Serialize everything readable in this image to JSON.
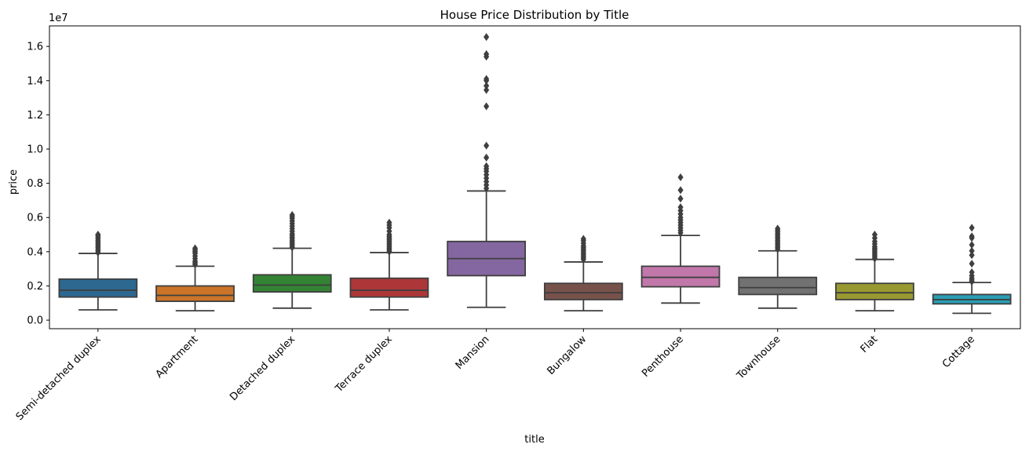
{
  "chart_data": {
    "type": "box",
    "title": "House Price Distribution by Title",
    "xlabel": "title",
    "ylabel": "price",
    "y_scale_label": "1e7",
    "ylim": [
      -0.05,
      1.72
    ],
    "y_unit_multiplier": 10000000,
    "yticks": [
      0.0,
      0.2,
      0.4,
      0.6,
      0.8,
      1.0,
      1.2,
      1.4,
      1.6
    ],
    "ytick_labels": [
      "0.0",
      "0.2",
      "0.4",
      "0.6",
      "0.8",
      "1.0",
      "1.2",
      "1.4",
      "1.6"
    ],
    "categories": [
      "Semi-detached duplex",
      "Apartment",
      "Detached duplex",
      "Terrace duplex",
      "Mansion",
      "Bungalow",
      "Penthouse",
      "Townhouse",
      "Flat",
      "Cottage"
    ],
    "boxes": [
      {
        "category": "Semi-detached duplex",
        "color": "#3274a1",
        "whisker_low": 0.06,
        "q1": 0.135,
        "median": 0.175,
        "q3": 0.24,
        "whisker_high": 0.39,
        "outliers": [
          0.395,
          0.405,
          0.415,
          0.425,
          0.435,
          0.445,
          0.455,
          0.465,
          0.475,
          0.485,
          0.495,
          0.5
        ]
      },
      {
        "category": "Apartment",
        "color": "#e1812c",
        "whisker_low": 0.055,
        "q1": 0.11,
        "median": 0.145,
        "q3": 0.2,
        "whisker_high": 0.315,
        "outliers": [
          0.325,
          0.335,
          0.345,
          0.36,
          0.375,
          0.39,
          0.4,
          0.41,
          0.42
        ]
      },
      {
        "category": "Detached duplex",
        "color": "#3a923a",
        "whisker_low": 0.07,
        "q1": 0.165,
        "median": 0.205,
        "q3": 0.265,
        "whisker_high": 0.42,
        "outliers": [
          0.425,
          0.435,
          0.445,
          0.455,
          0.465,
          0.475,
          0.485,
          0.495,
          0.505,
          0.52,
          0.535,
          0.55,
          0.565,
          0.58,
          0.595,
          0.605,
          0.615
        ]
      },
      {
        "category": "Terrace duplex",
        "color": "#c03d3e",
        "whisker_low": 0.06,
        "q1": 0.135,
        "median": 0.175,
        "q3": 0.245,
        "whisker_high": 0.395,
        "outliers": [
          0.4,
          0.41,
          0.42,
          0.43,
          0.44,
          0.45,
          0.46,
          0.47,
          0.48,
          0.49,
          0.5,
          0.52,
          0.54,
          0.555,
          0.57
        ]
      },
      {
        "category": "Mansion",
        "color": "#9372b2",
        "whisker_low": 0.075,
        "q1": 0.26,
        "median": 0.36,
        "q3": 0.46,
        "whisker_high": 0.755,
        "outliers": [
          0.77,
          0.79,
          0.81,
          0.83,
          0.85,
          0.87,
          0.885,
          0.9,
          0.95,
          1.02,
          1.25,
          1.345,
          1.37,
          1.4,
          1.41,
          1.54,
          1.555,
          1.655
        ]
      },
      {
        "category": "Bungalow",
        "color": "#845b53",
        "whisker_low": 0.055,
        "q1": 0.12,
        "median": 0.16,
        "q3": 0.215,
        "whisker_high": 0.34,
        "outliers": [
          0.355,
          0.365,
          0.375,
          0.385,
          0.395,
          0.405,
          0.415,
          0.425,
          0.435,
          0.45,
          0.465,
          0.475
        ]
      },
      {
        "category": "Penthouse",
        "color": "#d684bd",
        "whisker_low": 0.1,
        "q1": 0.195,
        "median": 0.25,
        "q3": 0.315,
        "whisker_high": 0.495,
        "outliers": [
          0.51,
          0.525,
          0.54,
          0.555,
          0.57,
          0.585,
          0.6,
          0.62,
          0.64,
          0.66,
          0.71,
          0.76,
          0.835
        ]
      },
      {
        "category": "Townhouse",
        "color": "#7f7f7f",
        "whisker_low": 0.07,
        "q1": 0.15,
        "median": 0.19,
        "q3": 0.25,
        "whisker_high": 0.405,
        "outliers": [
          0.415,
          0.425,
          0.435,
          0.445,
          0.455,
          0.465,
          0.475,
          0.485,
          0.495,
          0.505,
          0.515,
          0.525,
          0.535
        ]
      },
      {
        "category": "Flat",
        "color": "#a9aa35",
        "whisker_low": 0.055,
        "q1": 0.12,
        "median": 0.16,
        "q3": 0.215,
        "whisker_high": 0.355,
        "outliers": [
          0.36,
          0.37,
          0.38,
          0.39,
          0.4,
          0.41,
          0.42,
          0.43,
          0.445,
          0.46,
          0.48,
          0.5
        ]
      },
      {
        "category": "Cottage",
        "color": "#2eb0c8",
        "whisker_low": 0.04,
        "q1": 0.095,
        "median": 0.12,
        "q3": 0.15,
        "whisker_high": 0.22,
        "outliers": [
          0.225,
          0.235,
          0.245,
          0.26,
          0.28,
          0.33,
          0.38,
          0.405,
          0.44,
          0.48,
          0.49,
          0.54
        ]
      }
    ],
    "grid": false,
    "legend": "none"
  }
}
